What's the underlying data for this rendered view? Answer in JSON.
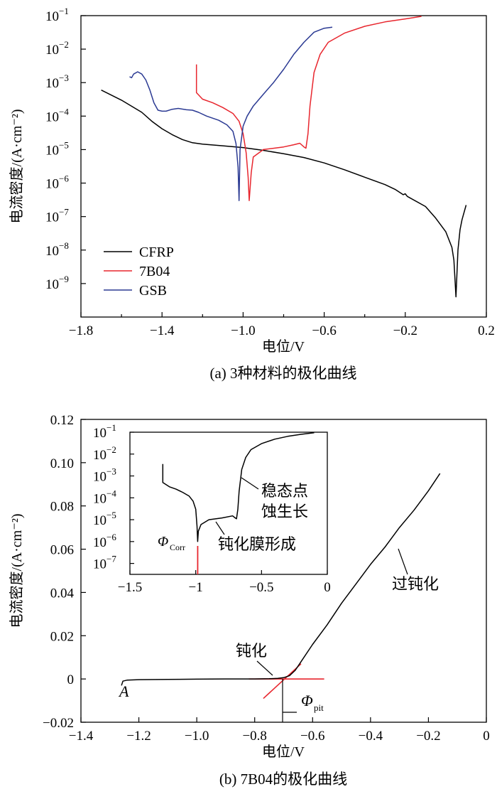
{
  "chart_data": [
    {
      "type": "line",
      "caption": "(a) 3种材料的极化曲线",
      "xlabel": "电位/V",
      "ylabel": "电流密度/(A·cm⁻²)",
      "xlim": [
        -1.8,
        0.2
      ],
      "ylim_log10": [
        -10,
        -1
      ],
      "yscale": "log",
      "x_ticks": [
        "−1.8",
        "−1.4",
        "−1.0",
        "−0.6",
        "−0.2",
        "0.2"
      ],
      "y_tick_exponents": [
        "-9",
        "-8",
        "-7",
        "-6",
        "-5",
        "-4",
        "-3",
        "-2",
        "-1"
      ],
      "legend_position": "bottom-left",
      "series": [
        {
          "name": "CFRP",
          "color": "#000000",
          "points": [
            [
              -1.7,
              0.0006
            ],
            [
              -1.6,
              0.0003
            ],
            [
              -1.5,
              0.00013
            ],
            [
              -1.45,
              7e-05
            ],
            [
              -1.4,
              4.2e-05
            ],
            [
              -1.35,
              2.8e-05
            ],
            [
              -1.3,
              2e-05
            ],
            [
              -1.25,
              1.6e-05
            ],
            [
              -1.2,
              1.45e-05
            ],
            [
              -1.1,
              1.3e-05
            ],
            [
              -1.0,
              1.15e-05
            ],
            [
              -0.9,
              9.5e-06
            ],
            [
              -0.8,
              7.5e-06
            ],
            [
              -0.7,
              5.8e-06
            ],
            [
              -0.6,
              4e-06
            ],
            [
              -0.5,
              2.5e-06
            ],
            [
              -0.4,
              1.5e-06
            ],
            [
              -0.3,
              9e-07
            ],
            [
              -0.25,
              6.5e-07
            ],
            [
              -0.21,
              4.5e-07
            ],
            [
              -0.2,
              4.8e-07
            ],
            [
              -0.19,
              4e-07
            ],
            [
              -0.1,
              2e-07
            ],
            [
              -0.05,
              9e-08
            ],
            [
              0.0,
              3.5e-08
            ],
            [
              0.03,
              1.2e-08
            ],
            [
              0.04,
              5e-09
            ],
            [
              0.05,
              4e-10
            ],
            [
              0.06,
              1e-08
            ],
            [
              0.07,
              4e-08
            ],
            [
              0.08,
              8e-08
            ],
            [
              0.1,
              2.2e-07
            ]
          ]
        },
        {
          "name": "7B04",
          "color": "#e8262e",
          "points": [
            [
              -1.23,
              0.0035
            ],
            [
              -1.23,
              0.0005
            ],
            [
              -1.2,
              0.00032
            ],
            [
              -1.15,
              0.00025
            ],
            [
              -1.1,
              0.00018
            ],
            [
              -1.05,
              0.00012
            ],
            [
              -1.02,
              7e-05
            ],
            [
              -1.0,
              3e-05
            ],
            [
              -0.985,
              8e-06
            ],
            [
              -0.975,
              1.5e-06
            ],
            [
              -0.97,
              3e-07
            ],
            [
              -0.96,
              2e-06
            ],
            [
              -0.95,
              6e-06
            ],
            [
              -0.9,
              1e-05
            ],
            [
              -0.8,
              1.2e-05
            ],
            [
              -0.75,
              1.4e-05
            ],
            [
              -0.72,
              1.55e-05
            ],
            [
              -0.7,
              1.2e-05
            ],
            [
              -0.69,
              1.1e-05
            ],
            [
              -0.68,
              3e-05
            ],
            [
              -0.67,
              0.0002
            ],
            [
              -0.65,
              0.002
            ],
            [
              -0.62,
              0.007
            ],
            [
              -0.58,
              0.016
            ],
            [
              -0.5,
              0.03
            ],
            [
              -0.4,
              0.048
            ],
            [
              -0.3,
              0.065
            ],
            [
              -0.2,
              0.08
            ],
            [
              -0.12,
              0.095
            ]
          ]
        },
        {
          "name": "GSB",
          "color": "#2b3a93",
          "points": [
            [
              -1.56,
              0.0015
            ],
            [
              -1.55,
              0.0014
            ],
            [
              -1.54,
              0.0018
            ],
            [
              -1.52,
              0.0021
            ],
            [
              -1.5,
              0.0018
            ],
            [
              -1.48,
              0.0012
            ],
            [
              -1.46,
              0.0006
            ],
            [
              -1.44,
              0.00025
            ],
            [
              -1.42,
              0.00015
            ],
            [
              -1.4,
              0.00014
            ],
            [
              -1.38,
              0.00014
            ],
            [
              -1.35,
              0.00016
            ],
            [
              -1.32,
              0.00017
            ],
            [
              -1.28,
              0.000155
            ],
            [
              -1.25,
              0.00015
            ],
            [
              -1.22,
              0.00013
            ],
            [
              -1.18,
              0.0001
            ],
            [
              -1.12,
              7.5e-05
            ],
            [
              -1.08,
              5.5e-05
            ],
            [
              -1.05,
              3.5e-05
            ],
            [
              -1.035,
              1.5e-05
            ],
            [
              -1.025,
              3e-06
            ],
            [
              -1.02,
              3e-07
            ],
            [
              -1.015,
              1e-05
            ],
            [
              -1.0,
              5e-05
            ],
            [
              -0.98,
              0.0001
            ],
            [
              -0.95,
              0.0002
            ],
            [
              -0.9,
              0.00045
            ],
            [
              -0.85,
              0.001
            ],
            [
              -0.8,
              0.0025
            ],
            [
              -0.75,
              0.007
            ],
            [
              -0.7,
              0.016
            ],
            [
              -0.65,
              0.032
            ],
            [
              -0.6,
              0.042
            ],
            [
              -0.56,
              0.045
            ]
          ]
        }
      ]
    },
    {
      "type": "line",
      "caption": "(b) 7B04的极化曲线",
      "xlabel": "电位/V",
      "ylabel": "电流密度/(A·cm⁻²)",
      "xlim": [
        -1.4,
        0
      ],
      "ylim": [
        -0.02,
        0.12
      ],
      "x_ticks": [
        "−1.4",
        "−1.2",
        "−1.0",
        "−0.8",
        "−0.6",
        "−0.4",
        "−0.2",
        "0"
      ],
      "y_ticks": [
        "−0.02",
        "0",
        "0.02",
        "0.04",
        "0.06",
        "0.08",
        "0.10",
        "0.12"
      ],
      "series": [
        {
          "name": "7B04",
          "color": "#000000",
          "points": [
            [
              -1.26,
              -0.003
            ],
            [
              -1.255,
              -0.001
            ],
            [
              -1.24,
              -0.0005
            ],
            [
              -1.2,
              -0.0003
            ],
            [
              -1.1,
              -0.0002
            ],
            [
              -1.0,
              -0.0001
            ],
            [
              -0.9,
              0.0
            ],
            [
              -0.8,
              0.0
            ],
            [
              -0.75,
              0.0001
            ],
            [
              -0.72,
              0.0003
            ],
            [
              -0.7,
              0.0006
            ],
            [
              -0.68,
              0.0015
            ],
            [
              -0.66,
              0.004
            ],
            [
              -0.64,
              0.008
            ],
            [
              -0.6,
              0.016
            ],
            [
              -0.55,
              0.025
            ],
            [
              -0.5,
              0.035
            ],
            [
              -0.45,
              0.044
            ],
            [
              -0.4,
              0.053
            ],
            [
              -0.35,
              0.061
            ],
            [
              -0.3,
              0.07
            ],
            [
              -0.25,
              0.078
            ],
            [
              -0.2,
              0.087
            ],
            [
              -0.16,
              0.095
            ]
          ]
        }
      ],
      "tangent_lines": {
        "color": "#e8262e",
        "baseline": [
          [
            -0.82,
            0.0
          ],
          [
            -0.56,
            0.0
          ]
        ],
        "rising": [
          [
            -0.77,
            -0.009
          ],
          [
            -0.64,
            0.007
          ]
        ]
      },
      "annotations": {
        "start_label": "A",
        "passivation": "钝化",
        "transpassivation": "过钝化",
        "phi_pit_symbol": "Φ",
        "phi_pit_sub": "pit"
      },
      "inset": {
        "type": "line",
        "yscale": "log",
        "xlim": [
          -1.5,
          0
        ],
        "ylim_log10": [
          -7.5,
          -1
        ],
        "x_ticks": [
          "−1.5",
          "−1",
          "−0.5",
          "0"
        ],
        "y_tick_exponents": [
          "-7",
          "-6",
          "-5",
          "-4",
          "-3",
          "-2",
          "-1"
        ],
        "points": [
          [
            -1.25,
            0.0035
          ],
          [
            -1.25,
            0.0005
          ],
          [
            -1.2,
            0.00032
          ],
          [
            -1.15,
            0.00025
          ],
          [
            -1.1,
            0.00018
          ],
          [
            -1.05,
            0.00012
          ],
          [
            -1.02,
            7e-05
          ],
          [
            -1.0,
            3e-05
          ],
          [
            -0.99,
            5e-06
          ],
          [
            -0.985,
            1e-06
          ],
          [
            -0.98,
            3e-06
          ],
          [
            -0.96,
            6e-06
          ],
          [
            -0.9,
            1e-05
          ],
          [
            -0.8,
            1.2e-05
          ],
          [
            -0.72,
            1.5e-05
          ],
          [
            -0.7,
            1.2e-05
          ],
          [
            -0.69,
            1.1e-05
          ],
          [
            -0.68,
            3e-05
          ],
          [
            -0.67,
            0.0002
          ],
          [
            -0.65,
            0.002
          ],
          [
            -0.62,
            0.007
          ],
          [
            -0.58,
            0.016
          ],
          [
            -0.5,
            0.03
          ],
          [
            -0.4,
            0.048
          ],
          [
            -0.3,
            0.065
          ],
          [
            -0.2,
            0.08
          ],
          [
            -0.1,
            0.095
          ]
        ],
        "corr_marker_x": -0.985,
        "annotations": {
          "pitting_line1": "稳态点",
          "pitting_line2": "蚀生长",
          "film": "钝化膜形成",
          "phi_corr_symbol": "Φ",
          "phi_corr_sub": "Corr"
        }
      }
    }
  ]
}
